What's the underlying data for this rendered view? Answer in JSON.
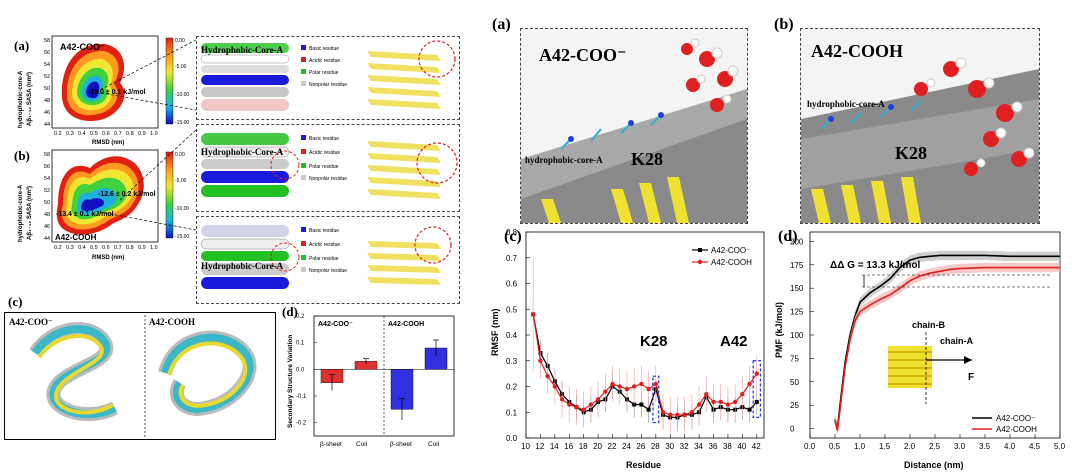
{
  "left_figure": {
    "labels": {
      "a": "(a)",
      "b": "(b)",
      "c": "(c)",
      "d": "(d)"
    },
    "map_a": {
      "title": "A42-COO⁻",
      "annotation": "-15.0 ± 0.1 kJ/mol",
      "ylabel": "hydrophobic-core-A",
      "ylabel2": "Aβ₁₋₄₂ SASA (nm²)",
      "xlabel": "RMSD (nm)",
      "xticks": [
        "0.2",
        "0.3",
        "0.4",
        "0.5",
        "0.6",
        "0.7",
        "0.8",
        "0.9",
        "1.0"
      ],
      "yticks": [
        "58",
        "56",
        "54",
        "52",
        "50",
        "48",
        "46",
        "44"
      ],
      "cbar_ticks": [
        "0.00",
        "-5.00",
        "-10.00",
        "-15.00"
      ]
    },
    "map_b": {
      "title": "A42-COOH",
      "annotation1": "-12.6 ± 0.2 kJ/mol",
      "annotation2": "-13.4 ± 0.1 kJ/mol",
      "ylabel": "hydrophobic-core-A",
      "ylabel2": "Aβ₁₋₄₂ SASA (nm²)",
      "xlabel": "RMSD (nm)",
      "xticks": [
        "0.2",
        "0.3",
        "0.4",
        "0.5",
        "0.6",
        "0.7",
        "0.8",
        "0.9",
        "1.0"
      ],
      "yticks": [
        "58",
        "56",
        "54",
        "52",
        "50",
        "48",
        "46",
        "44"
      ],
      "cbar_ticks": [
        "0.00",
        "-5.00",
        "-10.00",
        "-15.00"
      ]
    },
    "structures": {
      "core_label": "Hydrophobic-Core-A",
      "legend": [
        "Basic residue",
        "Acidic residue",
        "Polar residue",
        "Nonpolar residue"
      ],
      "legend_colors": [
        "#1a1adc",
        "#e02020",
        "#22c022",
        "#c8c8c8"
      ]
    },
    "ensemble": {
      "left": "A42-COO⁻",
      "right": "A42-COOH"
    },
    "bar": {
      "ylabel": "Secondary Structure Variation",
      "left_label": "A42-COO⁻",
      "right_label": "A42-COOH",
      "yticks": [
        "0.2",
        "0.1",
        "0.0",
        "-0.1",
        "-0.2"
      ],
      "categories": [
        "β-sheet",
        "Coil",
        "β-sheet",
        "Coil"
      ]
    }
  },
  "right_figure": {
    "labels": {
      "a": "(a)",
      "b": "(b)",
      "c": "(c)",
      "d": "(d)"
    },
    "snap_a": {
      "title": "A42-COO⁻",
      "core": "hydrophobic-core-A",
      "residue": "K28"
    },
    "snap_b": {
      "title": "A42-COOH",
      "core": "hydrophobic-core-A",
      "residue": "K28"
    },
    "rmsf": {
      "k28": "K28",
      "a42": "A42"
    },
    "pmf": {
      "delta": "ΔΔ G = 13.3  kJ/mol",
      "chain_b": "chain-B",
      "chain_a": "chain-A",
      "force": "F"
    }
  },
  "colors": {
    "coo": "#000000",
    "cooh": "#e02020",
    "bar_red": "#e03030",
    "bar_blue": "#3030e0"
  },
  "chart_data": [
    {
      "type": "bar",
      "title": "",
      "xlabel": "",
      "ylabel": "Secondary Structure Variation",
      "categories": [
        "β-sheet",
        "Coil",
        "β-sheet",
        "Coil"
      ],
      "groups": [
        "A42-COO⁻",
        "A42-COO⁻",
        "A42-COOH",
        "A42-COOH"
      ],
      "values": [
        -0.05,
        0.03,
        -0.15,
        0.08
      ],
      "errors": [
        0.03,
        0.01,
        0.04,
        0.03
      ],
      "ylim": [
        -0.25,
        0.2
      ],
      "yticks": [
        0.2,
        0.1,
        0.0,
        -0.1,
        -0.2
      ]
    },
    {
      "type": "line",
      "title": "",
      "xlabel": "Residue",
      "ylabel": "RMSF (nm)",
      "x": [
        11,
        12,
        13,
        14,
        15,
        16,
        17,
        18,
        19,
        20,
        21,
        22,
        23,
        24,
        25,
        26,
        27,
        28,
        29,
        30,
        31,
        32,
        33,
        34,
        35,
        36,
        37,
        38,
        39,
        40,
        41,
        42
      ],
      "series": [
        {
          "name": "A42-COO⁻",
          "color": "#000000",
          "values": [
            0.48,
            0.33,
            0.28,
            0.22,
            0.17,
            0.14,
            0.12,
            0.1,
            0.11,
            0.14,
            0.15,
            0.2,
            0.18,
            0.15,
            0.13,
            0.13,
            0.11,
            0.19,
            0.09,
            0.08,
            0.08,
            0.09,
            0.09,
            0.1,
            0.16,
            0.11,
            0.12,
            0.11,
            0.11,
            0.12,
            0.11,
            0.14
          ]
        },
        {
          "name": "A42-COOH",
          "color": "#e02020",
          "values": [
            0.48,
            0.3,
            0.24,
            0.2,
            0.15,
            0.13,
            0.12,
            0.11,
            0.13,
            0.15,
            0.18,
            0.21,
            0.2,
            0.19,
            0.2,
            0.21,
            0.19,
            0.21,
            0.1,
            0.09,
            0.09,
            0.09,
            0.1,
            0.13,
            0.17,
            0.14,
            0.14,
            0.13,
            0.14,
            0.17,
            0.21,
            0.25
          ]
        }
      ],
      "xticks": [
        10,
        12,
        14,
        16,
        18,
        20,
        22,
        24,
        26,
        28,
        30,
        32,
        34,
        36,
        38,
        40,
        42
      ],
      "yticks": [
        0.0,
        0.1,
        0.2,
        0.3,
        0.4,
        0.5,
        0.6,
        0.7,
        0.8
      ],
      "xlim": [
        10,
        43
      ],
      "ylim": [
        0.0,
        0.8
      ],
      "legend_position": "top-right"
    },
    {
      "type": "line",
      "title": "",
      "xlabel": "Distance (nm)",
      "ylabel": "PMF (kJ/mol)",
      "x": [
        0.5,
        0.55,
        0.6,
        0.7,
        0.8,
        0.9,
        1.0,
        1.2,
        1.4,
        1.6,
        1.8,
        2.0,
        2.2,
        2.4,
        2.6,
        2.8,
        3.0,
        3.5,
        4.0,
        4.5,
        5.0
      ],
      "series": [
        {
          "name": "A42-COO⁻",
          "color": "#000000",
          "values": [
            10,
            0,
            25,
            70,
            100,
            120,
            135,
            145,
            152,
            160,
            172,
            180,
            183,
            184,
            185,
            185,
            185,
            185,
            184,
            184,
            184
          ]
        },
        {
          "name": "A42-COOH",
          "color": "#e02020",
          "values": [
            8,
            -2,
            20,
            65,
            95,
            115,
            125,
            132,
            138,
            143,
            150,
            158,
            163,
            166,
            168,
            170,
            171,
            172,
            172,
            172,
            172
          ]
        }
      ],
      "xticks": [
        0.0,
        0.5,
        1.0,
        1.5,
        2.0,
        2.5,
        3.0,
        3.5,
        4.0,
        4.5,
        5.0
      ],
      "yticks": [
        0,
        25,
        50,
        75,
        100,
        125,
        150,
        175,
        200
      ],
      "xlim": [
        0.0,
        5.0
      ],
      "ylim": [
        -10,
        210
      ],
      "legend_position": "bottom-right"
    }
  ]
}
